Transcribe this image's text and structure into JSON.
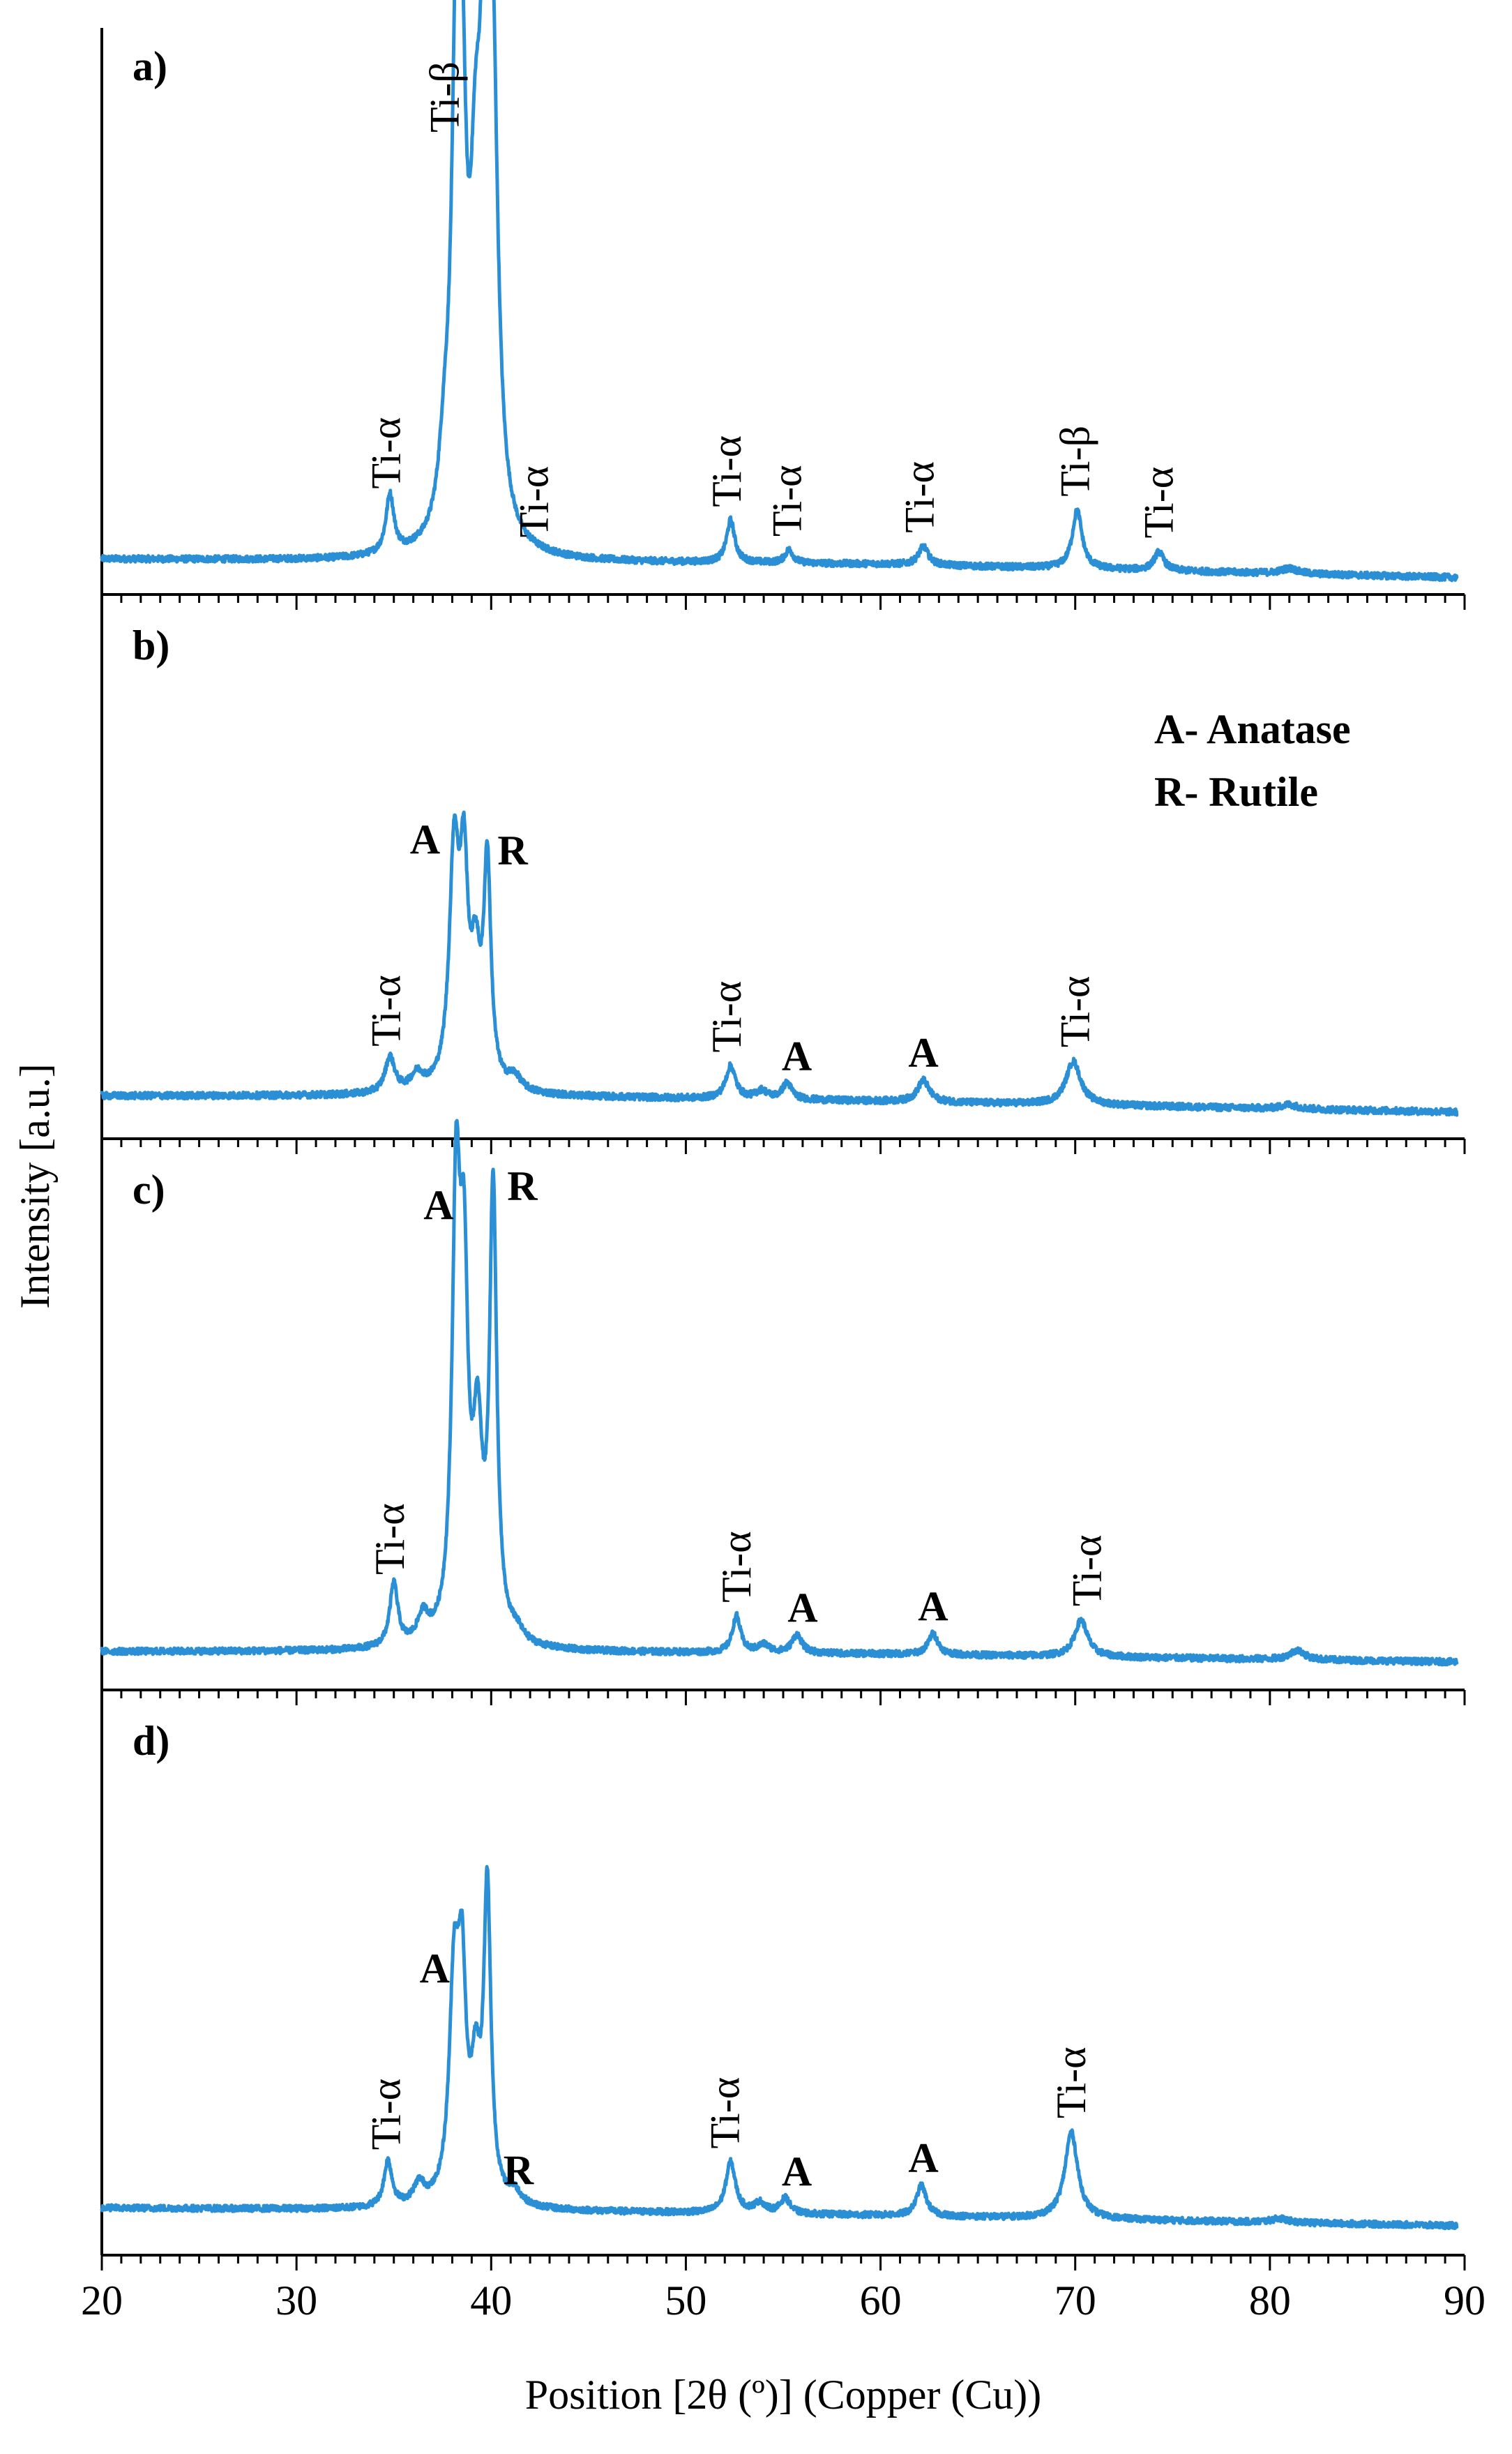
{
  "chart_data": {
    "type": "line",
    "xlabel": "Position [2θ (º)] (Copper (Cu))",
    "ylabel": "Intensity [a.u.]",
    "xlim": [
      20,
      90
    ],
    "x_ticks": [
      20,
      30,
      40,
      50,
      60,
      70,
      80,
      90
    ],
    "legend": [
      "A- Anatase",
      "R- Rutile"
    ],
    "panels": [
      {
        "label": "a)",
        "baseline": [
          [
            20,
            0.035
          ],
          [
            40,
            0.03
          ],
          [
            60,
            0.025
          ],
          [
            90,
            0.0
          ]
        ],
        "peaks": [
          {
            "x": 34.8,
            "h": 0.11,
            "w": 0.25
          },
          {
            "x": 37.6,
            "h": 0.12,
            "w": 0.35
          },
          {
            "x": 38.2,
            "h": 0.82,
            "w": 0.28
          },
          {
            "x": 38.5,
            "h": 0.6,
            "w": 0.25
          },
          {
            "x": 39.2,
            "h": 0.5,
            "w": 0.35
          },
          {
            "x": 39.7,
            "h": 0.88,
            "w": 0.3
          },
          {
            "x": 40.1,
            "h": 0.7,
            "w": 0.3
          },
          {
            "x": 52.3,
            "h": 0.08,
            "w": 0.25
          },
          {
            "x": 55.3,
            "h": 0.025,
            "w": 0.25
          },
          {
            "x": 62.2,
            "h": 0.035,
            "w": 0.3
          },
          {
            "x": 70.1,
            "h": 0.11,
            "w": 0.3
          },
          {
            "x": 74.3,
            "h": 0.035,
            "w": 0.3
          },
          {
            "x": 81.0,
            "h": 0.01,
            "w": 0.5
          }
        ],
        "annotations": [
          {
            "text": "Ti-α",
            "x": 34.6,
            "bold": false,
            "rotated": true
          },
          {
            "text": "Ti-β",
            "x": 37.6,
            "bold": false,
            "rotated": true
          },
          {
            "text": "Ti-α",
            "x": 42.2,
            "bold": false,
            "rotated": true
          },
          {
            "text": "Ti-α",
            "x": 52.1,
            "bold": false,
            "rotated": true
          },
          {
            "text": "Ti-α",
            "x": 55.2,
            "bold": false,
            "rotated": true
          },
          {
            "text": "Ti-α",
            "x": 62.0,
            "bold": false,
            "rotated": true
          },
          {
            "text": "Ti-β",
            "x": 70.0,
            "bold": false,
            "rotated": true
          },
          {
            "text": "Ti-α",
            "x": 74.3,
            "bold": false,
            "rotated": true
          }
        ]
      },
      {
        "label": "b)",
        "baseline": [
          [
            20,
            0.03
          ],
          [
            40,
            0.03
          ],
          [
            60,
            0.02
          ],
          [
            90,
            0.0
          ]
        ],
        "peaks": [
          {
            "x": 34.8,
            "h": 0.065,
            "w": 0.3
          },
          {
            "x": 36.2,
            "h": 0.03,
            "w": 0.4
          },
          {
            "x": 38.1,
            "h": 0.42,
            "w": 0.3
          },
          {
            "x": 38.6,
            "h": 0.35,
            "w": 0.25
          },
          {
            "x": 39.2,
            "h": 0.2,
            "w": 0.3
          },
          {
            "x": 39.8,
            "h": 0.4,
            "w": 0.22
          },
          {
            "x": 41.2,
            "h": 0.025,
            "w": 0.4
          },
          {
            "x": 52.3,
            "h": 0.06,
            "w": 0.3
          },
          {
            "x": 53.9,
            "h": 0.015,
            "w": 0.35
          },
          {
            "x": 55.2,
            "h": 0.03,
            "w": 0.3
          },
          {
            "x": 62.2,
            "h": 0.04,
            "w": 0.35
          },
          {
            "x": 69.9,
            "h": 0.08,
            "w": 0.45
          },
          {
            "x": 81.0,
            "h": 0.008,
            "w": 0.5
          }
        ],
        "annotations": [
          {
            "text": "Ti-α",
            "x": 34.6,
            "bold": false,
            "rotated": true
          },
          {
            "text": "A",
            "x": 36.6,
            "bold": true,
            "rotated": false
          },
          {
            "text": "R",
            "x": 41.1,
            "bold": true,
            "rotated": false
          },
          {
            "text": "Ti-α",
            "x": 52.1,
            "bold": false,
            "rotated": true
          },
          {
            "text": "A",
            "x": 55.7,
            "bold": true,
            "rotated": false
          },
          {
            "text": "A",
            "x": 62.2,
            "bold": true,
            "rotated": false
          },
          {
            "text": "Ti-α",
            "x": 70.0,
            "bold": false,
            "rotated": true
          }
        ]
      },
      {
        "label": "c)",
        "baseline": [
          [
            20,
            0.02
          ],
          [
            40,
            0.02
          ],
          [
            60,
            0.015
          ],
          [
            90,
            0.0
          ]
        ],
        "peaks": [
          {
            "x": 35.0,
            "h": 0.12,
            "w": 0.25
          },
          {
            "x": 36.5,
            "h": 0.05,
            "w": 0.35
          },
          {
            "x": 38.2,
            "h": 0.8,
            "w": 0.25
          },
          {
            "x": 38.6,
            "h": 0.6,
            "w": 0.25
          },
          {
            "x": 39.3,
            "h": 0.35,
            "w": 0.3
          },
          {
            "x": 40.1,
            "h": 0.85,
            "w": 0.22
          },
          {
            "x": 41.3,
            "h": 0.02,
            "w": 0.4
          },
          {
            "x": 52.6,
            "h": 0.07,
            "w": 0.25
          },
          {
            "x": 54.0,
            "h": 0.015,
            "w": 0.35
          },
          {
            "x": 55.7,
            "h": 0.035,
            "w": 0.3
          },
          {
            "x": 62.7,
            "h": 0.04,
            "w": 0.3
          },
          {
            "x": 70.3,
            "h": 0.07,
            "w": 0.4
          },
          {
            "x": 81.4,
            "h": 0.018,
            "w": 0.45
          }
        ],
        "annotations": [
          {
            "text": "Ti-α",
            "x": 34.8,
            "bold": false,
            "rotated": true
          },
          {
            "text": "A",
            "x": 37.3,
            "bold": true,
            "rotated": false
          },
          {
            "text": "R",
            "x": 41.6,
            "bold": true,
            "rotated": false
          },
          {
            "text": "Ti-α",
            "x": 52.6,
            "bold": false,
            "rotated": true
          },
          {
            "text": "A",
            "x": 56.0,
            "bold": true,
            "rotated": false
          },
          {
            "text": "A",
            "x": 62.7,
            "bold": true,
            "rotated": false
          },
          {
            "text": "Ti-α",
            "x": 70.6,
            "bold": false,
            "rotated": true
          }
        ]
      },
      {
        "label": "d)",
        "baseline": [
          [
            20,
            0.035
          ],
          [
            40,
            0.03
          ],
          [
            60,
            0.02
          ],
          [
            90,
            0.0
          ]
        ],
        "peaks": [
          {
            "x": 34.7,
            "h": 0.09,
            "w": 0.25
          },
          {
            "x": 36.3,
            "h": 0.04,
            "w": 0.35
          },
          {
            "x": 38.1,
            "h": 0.42,
            "w": 0.3
          },
          {
            "x": 38.5,
            "h": 0.38,
            "w": 0.25
          },
          {
            "x": 39.2,
            "h": 0.22,
            "w": 0.3
          },
          {
            "x": 39.8,
            "h": 0.6,
            "w": 0.22
          },
          {
            "x": 41.2,
            "h": 0.025,
            "w": 0.4
          },
          {
            "x": 52.3,
            "h": 0.1,
            "w": 0.3
          },
          {
            "x": 53.8,
            "h": 0.02,
            "w": 0.35
          },
          {
            "x": 55.1,
            "h": 0.03,
            "w": 0.3
          },
          {
            "x": 62.1,
            "h": 0.06,
            "w": 0.3
          },
          {
            "x": 69.8,
            "h": 0.17,
            "w": 0.4
          },
          {
            "x": 80.5,
            "h": 0.008,
            "w": 0.5
          }
        ],
        "annotations": [
          {
            "text": "Ti-α",
            "x": 34.6,
            "bold": false,
            "rotated": true
          },
          {
            "text": "A",
            "x": 37.1,
            "bold": true,
            "rotated": false
          },
          {
            "text": "R",
            "x": 41.4,
            "bold": true,
            "rotated": false
          },
          {
            "text": "Ti-α",
            "x": 52.0,
            "bold": false,
            "rotated": true
          },
          {
            "text": "A",
            "x": 55.7,
            "bold": true,
            "rotated": false
          },
          {
            "text": "A",
            "x": 62.2,
            "bold": true,
            "rotated": false
          },
          {
            "text": "Ti-α",
            "x": 69.8,
            "bold": false,
            "rotated": true
          }
        ]
      }
    ]
  }
}
